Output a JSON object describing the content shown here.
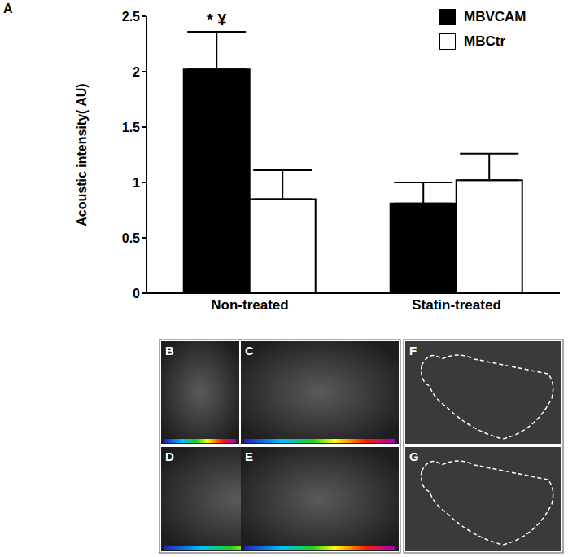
{
  "chart_data": {
    "type": "bar",
    "panel": "A",
    "y_label": "Acoustic intensity( AU)",
    "categories": [
      "Non-treated",
      "Statin-treated"
    ],
    "series": [
      {
        "name": "MBVCAM",
        "color": "#000000",
        "values": [
          2.02,
          0.81
        ],
        "errors": [
          0.34,
          0.19
        ]
      },
      {
        "name": "MBCtr",
        "color": "#ffffff",
        "values": [
          0.85,
          1.02
        ],
        "errors": [
          0.26,
          0.24
        ]
      }
    ],
    "ylim": [
      0,
      2.5
    ],
    "yticks": [
      0,
      0.5,
      1,
      1.5,
      2,
      2.5
    ],
    "legend": "top-right",
    "annotations": [
      {
        "text": "* ¥",
        "category": "Non-treated",
        "series": "MBVCAM"
      }
    ]
  },
  "image_panels": [
    "B",
    "C",
    "D",
    "E",
    "F",
    "G"
  ]
}
